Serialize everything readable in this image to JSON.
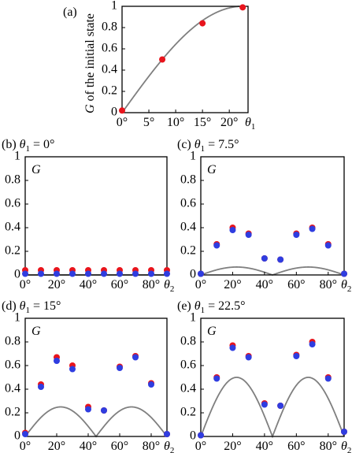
{
  "chart_data": [
    {
      "panel": "(a)",
      "type": "scatter",
      "ylabel_parts": [
        "G",
        " of the initial state"
      ],
      "xlabel": "θ1",
      "xlim": [
        0,
        23.5
      ],
      "ylim": [
        0,
        1
      ],
      "x_ticks": [
        0,
        5,
        10,
        15,
        20
      ],
      "x_tick_labels": [
        "0°",
        "5°",
        "10°",
        "15°",
        "20°"
      ],
      "y_ticks": [
        0,
        0.2,
        0.4,
        0.6,
        0.8,
        1
      ],
      "y_tick_labels": [
        "0",
        "0.2",
        "0.4",
        "0.6",
        "0.8",
        "1"
      ],
      "curve": "theory",
      "series": [
        {
          "color": "#e8141c",
          "x": [
            0,
            7.5,
            15,
            22.5
          ],
          "y": [
            0.02,
            0.5,
            0.84,
            0.99
          ]
        }
      ]
    },
    {
      "panel": "(b)",
      "title": "(b) θ1 = 0°",
      "title_parts": [
        "(b) ",
        "θ",
        "1",
        " = 0°"
      ],
      "theta1_deg": 0,
      "type": "scatter",
      "inner_label": "G",
      "xlabel": "θ2",
      "xlim": [
        0,
        90
      ],
      "ylim": [
        0,
        1
      ],
      "x_ticks": [
        0,
        20,
        40,
        60,
        80
      ],
      "x_tick_labels": [
        "0°",
        "20°",
        "40°",
        "60°",
        "80°"
      ],
      "y_ticks": [
        0,
        0.2,
        0.4,
        0.6,
        0.8,
        1
      ],
      "y_tick_labels": [
        "0",
        "0.2",
        "0.4",
        "0.6",
        "0.8",
        "1"
      ],
      "series": [
        {
          "color": "#e8141c",
          "x": [
            0,
            10,
            20,
            30,
            40,
            50,
            60,
            70,
            80,
            90
          ],
          "y": [
            0.04,
            0.04,
            0.04,
            0.04,
            0.04,
            0.04,
            0.04,
            0.04,
            0.04,
            0.04
          ]
        },
        {
          "color": "#2f3de0",
          "x": [
            0,
            10,
            20,
            30,
            40,
            50,
            60,
            70,
            80,
            90
          ],
          "y": [
            0.01,
            0.01,
            0.01,
            0.01,
            0.01,
            0.01,
            0.01,
            0.01,
            0.01,
            0.01
          ]
        }
      ]
    },
    {
      "panel": "(c)",
      "title": "(c) θ1 = 7.5°",
      "title_parts": [
        "(c) ",
        "θ",
        "1",
        " = 7.5°"
      ],
      "theta1_deg": 7.5,
      "type": "scatter",
      "inner_label": "G",
      "xlabel": "θ2",
      "xlim": [
        0,
        90
      ],
      "ylim": [
        0,
        1
      ],
      "x_ticks": [
        0,
        20,
        40,
        60,
        80
      ],
      "x_tick_labels": [
        "0°",
        "20°",
        "40°",
        "60°",
        "80°"
      ],
      "y_ticks": [
        0,
        0.2,
        0.4,
        0.6,
        0.8,
        1
      ],
      "y_tick_labels": [
        "0",
        "0.2",
        "0.4",
        "0.6",
        "0.8",
        "1"
      ],
      "series": [
        {
          "color": "#e8141c",
          "x": [
            0,
            10,
            20,
            30,
            40,
            50,
            60,
            70,
            80,
            90
          ],
          "y": [
            0.01,
            0.26,
            0.4,
            0.35,
            0.14,
            0.13,
            0.35,
            0.4,
            0.26,
            0.01
          ]
        },
        {
          "color": "#2f3de0",
          "x": [
            0,
            10,
            20,
            30,
            40,
            50,
            60,
            70,
            80,
            90
          ],
          "y": [
            0.01,
            0.25,
            0.38,
            0.34,
            0.14,
            0.13,
            0.34,
            0.39,
            0.25,
            0.01
          ]
        }
      ]
    },
    {
      "panel": "(d)",
      "title": "(d) θ1 = 15°",
      "title_parts": [
        "(d) ",
        "θ",
        "1",
        " = 15°"
      ],
      "theta1_deg": 15,
      "type": "scatter",
      "inner_label": "G",
      "xlabel": "θ2",
      "xlim": [
        0,
        90
      ],
      "ylim": [
        0,
        1
      ],
      "x_ticks": [
        0,
        20,
        40,
        60,
        80
      ],
      "x_tick_labels": [
        "0°",
        "20°",
        "40°",
        "60°",
        "80°"
      ],
      "y_ticks": [
        0,
        0.2,
        0.4,
        0.6,
        0.8,
        1
      ],
      "y_tick_labels": [
        "0",
        "0.2",
        "0.4",
        "0.6",
        "0.8",
        "1"
      ],
      "series": [
        {
          "color": "#e8141c",
          "x": [
            0,
            10,
            20,
            30,
            40,
            50,
            60,
            70,
            80,
            90
          ],
          "y": [
            0.03,
            0.44,
            0.67,
            0.6,
            0.25,
            0.22,
            0.59,
            0.68,
            0.45,
            0.02
          ]
        },
        {
          "color": "#2f3de0",
          "x": [
            0,
            10,
            20,
            30,
            40,
            50,
            60,
            70,
            80,
            90
          ],
          "y": [
            0.02,
            0.42,
            0.64,
            0.57,
            0.23,
            0.22,
            0.58,
            0.67,
            0.44,
            0.02
          ]
        }
      ]
    },
    {
      "panel": "(e)",
      "title": "(e) θ1 = 22.5°",
      "title_parts": [
        "(e) ",
        "θ",
        "1",
        " = 22.5°"
      ],
      "theta1_deg": 22.5,
      "type": "scatter",
      "inner_label": "G",
      "xlabel": "θ2",
      "xlim": [
        0,
        90
      ],
      "ylim": [
        0,
        1
      ],
      "x_ticks": [
        0,
        20,
        40,
        60,
        80
      ],
      "x_tick_labels": [
        "0°",
        "20°",
        "40°",
        "60°",
        "80°"
      ],
      "y_ticks": [
        0,
        0.2,
        0.4,
        0.6,
        0.8,
        1
      ],
      "y_tick_labels": [
        "0",
        "0.2",
        "0.4",
        "0.6",
        "0.8",
        "1"
      ],
      "series": [
        {
          "color": "#e8141c",
          "x": [
            0,
            10,
            20,
            30,
            40,
            50,
            60,
            70,
            80,
            90
          ],
          "y": [
            0.01,
            0.5,
            0.77,
            0.68,
            0.28,
            0.26,
            0.69,
            0.8,
            0.5,
            0.04
          ]
        },
        {
          "color": "#2f3de0",
          "x": [
            0,
            10,
            20,
            30,
            40,
            50,
            60,
            70,
            80,
            90
          ],
          "y": [
            0.01,
            0.49,
            0.75,
            0.67,
            0.27,
            0.26,
            0.68,
            0.78,
            0.49,
            0.04
          ]
        }
      ]
    }
  ],
  "colors": {
    "axes": "#000000",
    "curve": "#7f7f7f",
    "red": "#e8141c",
    "blue": "#2f3de0"
  }
}
